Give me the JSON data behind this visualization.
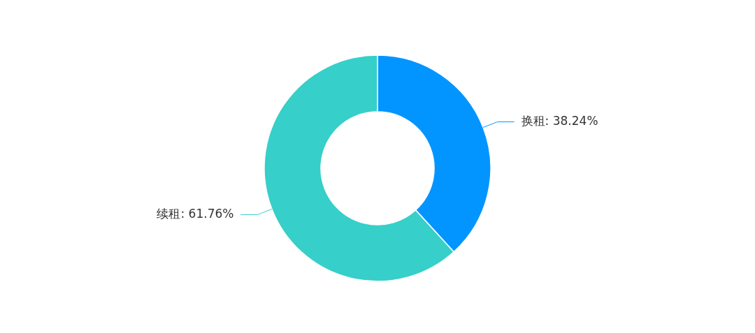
{
  "chart_data": {
    "type": "donut",
    "categories": [
      "换租",
      "续租"
    ],
    "values": [
      38.24,
      61.76
    ],
    "colors": [
      "#0395ff",
      "#36cfc9"
    ],
    "value_labels": [
      "38.24%",
      "61.76%"
    ],
    "legend": false
  }
}
